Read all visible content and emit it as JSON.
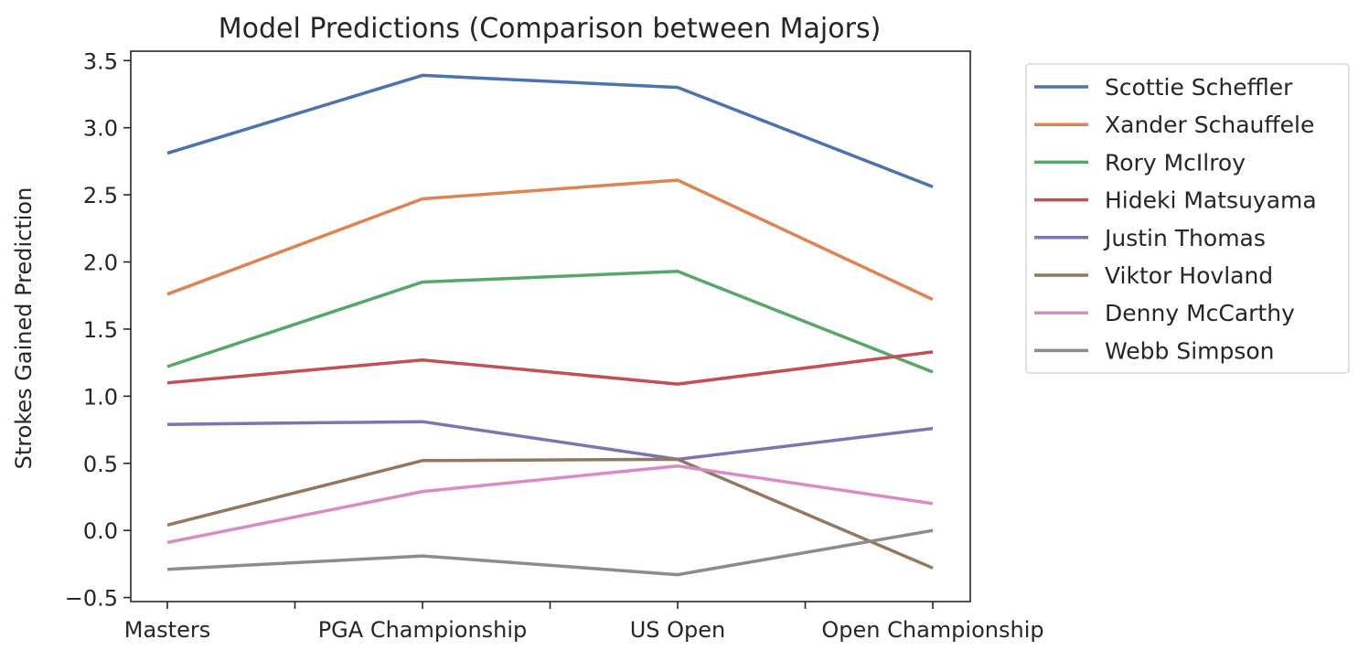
{
  "chart_data": {
    "type": "line",
    "title": "Model Predictions (Comparison between Majors)",
    "xlabel": "",
    "ylabel": "Strokes Gained Prediction",
    "categories": [
      "Masters",
      "PGA Championship",
      "US Open",
      "Open Championship"
    ],
    "ylim": [
      -0.53,
      3.57
    ],
    "yticks": [
      "−0.5",
      "0.0",
      "0.5",
      "1.0",
      "1.5",
      "2.0",
      "2.5",
      "3.0",
      "3.5"
    ],
    "ytick_values": [
      -0.5,
      0.0,
      0.5,
      1.0,
      1.5,
      2.0,
      2.5,
      3.0,
      3.5
    ],
    "grid": false,
    "legend_position": "outside-right-top",
    "series": [
      {
        "name": "Scottie Scheffler",
        "color": "#4c72b0",
        "values": [
          2.81,
          3.39,
          3.3,
          2.56
        ]
      },
      {
        "name": "Xander Schauffele",
        "color": "#dd8452",
        "values": [
          1.76,
          2.47,
          2.61,
          1.72
        ]
      },
      {
        "name": "Rory McIlroy",
        "color": "#55a868",
        "values": [
          1.22,
          1.85,
          1.93,
          1.18
        ]
      },
      {
        "name": "Hideki Matsuyama",
        "color": "#c44e52",
        "values": [
          1.1,
          1.27,
          1.09,
          1.33
        ]
      },
      {
        "name": "Justin Thomas",
        "color": "#8172b3",
        "values": [
          0.79,
          0.81,
          0.53,
          0.76
        ]
      },
      {
        "name": "Viktor Hovland",
        "color": "#937860",
        "values": [
          0.04,
          0.52,
          0.53,
          -0.28
        ]
      },
      {
        "name": "Denny McCarthy",
        "color": "#da8bc3",
        "values": [
          -0.09,
          0.29,
          0.48,
          0.2
        ]
      },
      {
        "name": "Webb Simpson",
        "color": "#8c8c8c",
        "values": [
          -0.29,
          -0.19,
          -0.33,
          0.0
        ]
      }
    ]
  }
}
